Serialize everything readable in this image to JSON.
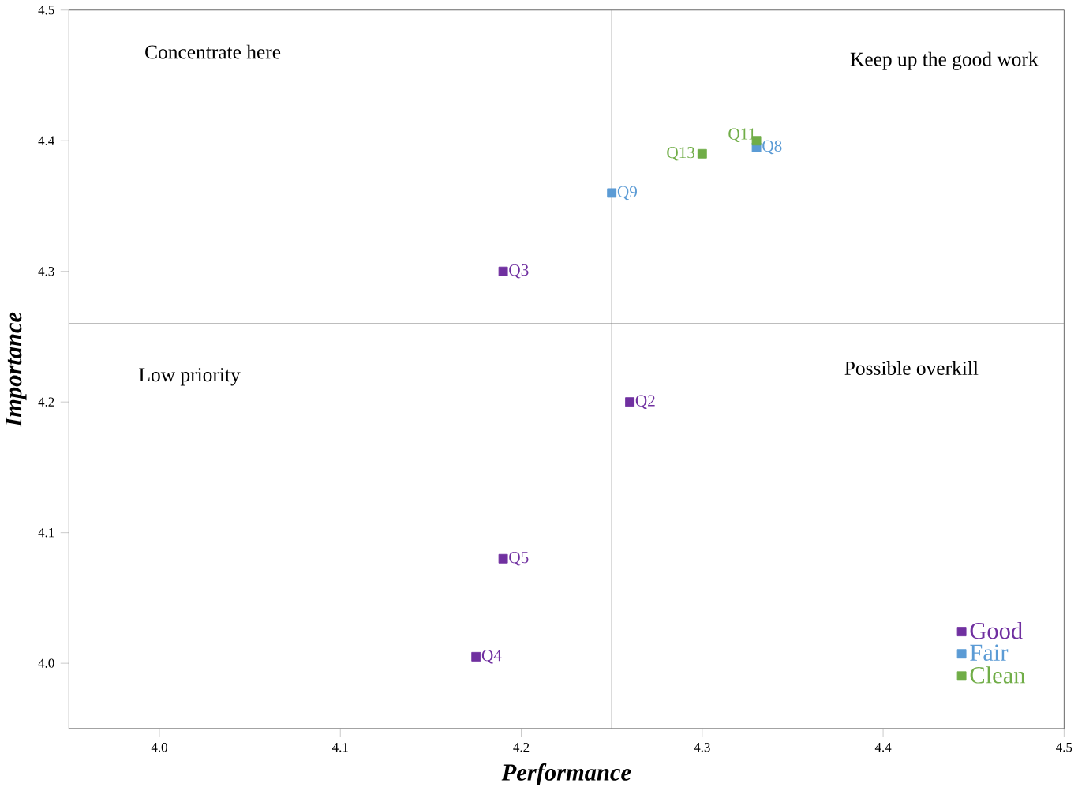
{
  "chart_data": {
    "type": "scatter",
    "xlabel": "Performance",
    "ylabel": "Importance",
    "xlim": [
      3.95,
      4.5
    ],
    "ylim": [
      3.95,
      4.5
    ],
    "xticks": [
      {
        "value": 4.0,
        "label": "4.0"
      },
      4.1,
      4.2,
      4.3,
      4.4,
      4.5
    ],
    "yticks": [
      {
        "value": 4.0,
        "label": "4.0"
      },
      4.1,
      4.2,
      4.3,
      4.4,
      4.5
    ],
    "marker": "square",
    "grid": false,
    "legend": "bottom right",
    "series": [
      {
        "name": "Good",
        "color": "#7030a0",
        "x": [
          4.19,
          4.26,
          4.19,
          4.175
        ],
        "values": [
          4.3,
          4.2,
          4.08,
          4.005
        ]
      },
      {
        "name": "Fair",
        "color": "#5b9bd5",
        "x": [
          4.25,
          4.33
        ],
        "values": [
          4.36,
          4.395
        ]
      },
      {
        "name": "Clean",
        "color": "#70ad47",
        "x": [
          4.3,
          4.33
        ],
        "values": [
          4.39,
          4.4
        ]
      }
    ],
    "ref_lines": [
      {
        "axis": "x",
        "value": 4.25,
        "color": "#808080"
      },
      {
        "axis": "y",
        "value": 4.26,
        "color": "#808080"
      }
    ],
    "annotations": [
      "Concentrate here",
      "Keep up the good work",
      "Low priority",
      "Possible overkill",
      {
        "text": "Q3",
        "x": 4.19,
        "y": 4.3
      },
      {
        "text": "Q2",
        "x": 4.26,
        "y": 4.2
      },
      {
        "text": "Q5",
        "x": 4.19,
        "y": 4.08
      },
      {
        "text": "Q4",
        "x": 4.175,
        "y": 4.005
      },
      {
        "text": "Q9",
        "x": 4.25,
        "y": 4.36
      },
      {
        "text": "Q8",
        "x": 4.33,
        "y": 4.395
      },
      {
        "text": "Q13",
        "x": 4.3,
        "y": 4.39
      },
      {
        "text": "Q11",
        "x": 4.33,
        "y": 4.4
      }
    ]
  }
}
